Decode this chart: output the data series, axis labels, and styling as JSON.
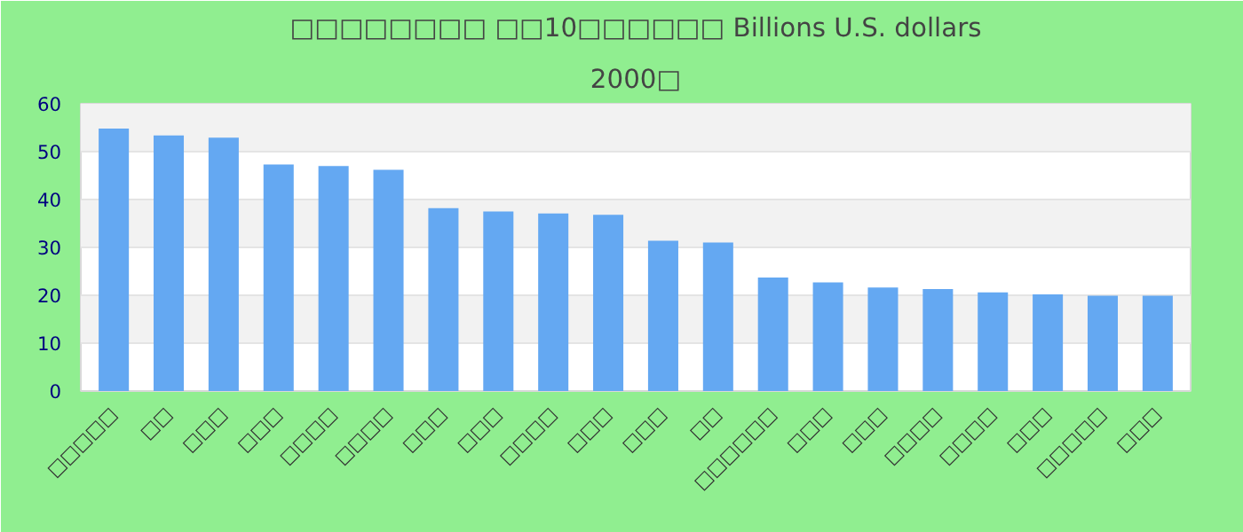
{
  "chart_data": {
    "type": "bar",
    "title": "□□□□□□□□ □□10□□□□□□ Billions U.S. dollars",
    "subtitle": "2000□",
    "categories": [
      "□□□□□",
      "□□",
      "□□□",
      "□□□",
      "□□□□",
      "□□□□",
      "□□□",
      "□□□",
      "□□□□",
      "□□□",
      "□□□",
      "□□",
      "□□□□□□",
      "□□□",
      "□□□",
      "□□□□",
      "□□□□",
      "□□□",
      "□□□□□",
      "□□□"
    ],
    "values": [
      54.8,
      53.4,
      52.9,
      47.3,
      47.0,
      46.2,
      38.2,
      37.5,
      37.1,
      36.8,
      31.4,
      31.0,
      23.7,
      22.7,
      21.6,
      21.3,
      20.6,
      20.2,
      19.9,
      19.9
    ],
    "color": "#64a8f2",
    "ylim": [
      0,
      60
    ],
    "yticks": [
      0,
      10,
      20,
      30,
      40,
      50,
      60
    ],
    "grid": "y"
  }
}
